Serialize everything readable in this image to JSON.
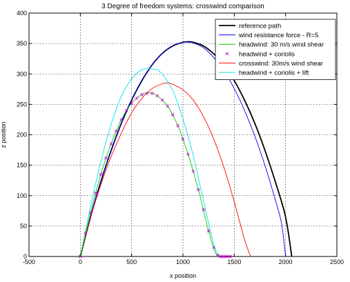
{
  "chart_data": {
    "type": "line",
    "title": "3 Degree of freedom systems: crosswind comparison",
    "xlabel": "x position",
    "ylabel": "z position",
    "xlim": [
      -500,
      2500
    ],
    "ylim": [
      0,
      400
    ],
    "xticks": [
      -500,
      0,
      500,
      1000,
      1500,
      2000,
      2500
    ],
    "yticks": [
      0,
      50,
      100,
      150,
      200,
      250,
      300,
      350,
      400
    ],
    "grid": true,
    "legend_location": "top-right",
    "series": [
      {
        "name": "reference path",
        "color": "#000000",
        "style": "line-thick",
        "x": [
          0,
          100,
          200,
          300,
          400,
          500,
          600,
          700,
          800,
          900,
          1000,
          1050,
          1100,
          1200,
          1300,
          1400,
          1500,
          1600,
          1700,
          1800,
          1900,
          2000,
          2060
        ],
        "y": [
          0,
          65,
          123,
          174,
          219,
          257,
          289,
          315,
          334,
          346,
          352,
          353,
          352,
          346,
          333,
          314,
          289,
          257,
          219,
          174,
          123,
          65,
          0
        ]
      },
      {
        "name": "wind resistance force - R=5",
        "color": "#0000ff",
        "style": "line",
        "x": [
          0,
          100,
          200,
          300,
          400,
          500,
          600,
          700,
          800,
          900,
          1000,
          1050,
          1100,
          1200,
          1300,
          1400,
          1500,
          1600,
          1700,
          1800,
          1900,
          1960,
          2000
        ],
        "y": [
          0,
          66,
          124,
          175,
          220,
          258,
          290,
          315,
          334,
          346,
          352,
          352,
          351,
          343,
          327,
          305,
          276,
          240,
          198,
          149,
          93,
          55,
          0
        ]
      },
      {
        "name": "headwind: 30 m/s wind shear",
        "color": "#00cc00",
        "style": "line",
        "x": [
          0,
          100,
          200,
          300,
          400,
          500,
          600,
          680,
          750,
          850,
          950,
          1050,
          1150,
          1250,
          1320,
          1360
        ],
        "y": [
          0,
          72,
          135,
          185,
          225,
          252,
          266,
          269,
          264,
          247,
          215,
          168,
          110,
          42,
          5,
          0
        ]
      },
      {
        "name": "headwind + coriolis",
        "color": "#cc00cc",
        "style": "marker-x",
        "x": [
          0,
          50,
          100,
          150,
          200,
          250,
          300,
          350,
          400,
          450,
          500,
          550,
          600,
          650,
          700,
          750,
          800,
          850,
          900,
          950,
          1000,
          1050,
          1100,
          1150,
          1200,
          1250,
          1300,
          1340,
          1360,
          1380,
          1400,
          1420,
          1440,
          1460
        ],
        "y": [
          0,
          38,
          72,
          104,
          135,
          162,
          185,
          206,
          225,
          240,
          252,
          260,
          266,
          268,
          268,
          264,
          257,
          247,
          233,
          215,
          193,
          168,
          140,
          110,
          77,
          42,
          15,
          2,
          0,
          0,
          0,
          0,
          0,
          0
        ]
      },
      {
        "name": "crosswind: 30m/s wind shear",
        "color": "#ff0000",
        "style": "line",
        "x": [
          0,
          100,
          200,
          300,
          400,
          500,
          600,
          700,
          800,
          850,
          900,
          1000,
          1100,
          1200,
          1300,
          1400,
          1500,
          1600,
          1660
        ],
        "y": [
          0,
          64,
          118,
          164,
          203,
          236,
          260,
          276,
          284,
          285,
          283,
          274,
          257,
          230,
          193,
          146,
          90,
          28,
          0
        ]
      },
      {
        "name": "headwind + coriolis + lift",
        "color": "#00e5e5",
        "style": "line",
        "x": [
          0,
          100,
          200,
          300,
          400,
          500,
          600,
          700,
          780,
          900,
          1000,
          1100,
          1200,
          1300,
          1360,
          1400
        ],
        "y": [
          0,
          82,
          156,
          217,
          263,
          292,
          307,
          308,
          303,
          273,
          226,
          166,
          92,
          20,
          0,
          0
        ]
      }
    ]
  }
}
